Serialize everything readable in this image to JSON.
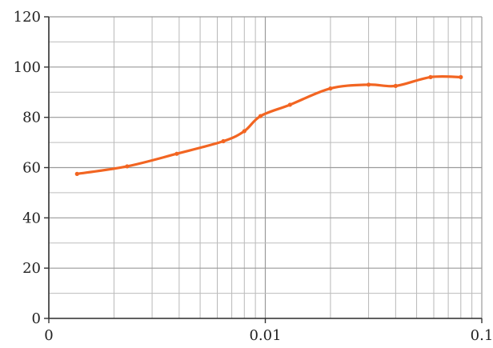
{
  "chart_data": {
    "type": "line",
    "x_scale": "log",
    "xlim": [
      0.001,
      0.1
    ],
    "ylim": [
      0,
      120
    ],
    "grid": true,
    "x_major_ticks": [
      0.001,
      0.01,
      0.1
    ],
    "x_tick_labels": [
      "0",
      "0.01",
      "0.1"
    ],
    "y_ticks": [
      0,
      20,
      40,
      60,
      80,
      100,
      120
    ],
    "y_tick_labels": [
      "0",
      "20",
      "40",
      "60",
      "80",
      "100",
      "120"
    ],
    "series": [
      {
        "color": "#f26522",
        "points": [
          {
            "x": 0.00135,
            "y": 57.5
          },
          {
            "x": 0.0023,
            "y": 60.5
          },
          {
            "x": 0.0039,
            "y": 65.5
          },
          {
            "x": 0.0064,
            "y": 70.5
          },
          {
            "x": 0.008,
            "y": 74.5
          },
          {
            "x": 0.0095,
            "y": 80.5
          },
          {
            "x": 0.013,
            "y": 85
          },
          {
            "x": 0.02,
            "y": 91.5
          },
          {
            "x": 0.03,
            "y": 93
          },
          {
            "x": 0.04,
            "y": 92.5
          },
          {
            "x": 0.058,
            "y": 96
          },
          {
            "x": 0.08,
            "y": 96
          }
        ]
      }
    ]
  }
}
